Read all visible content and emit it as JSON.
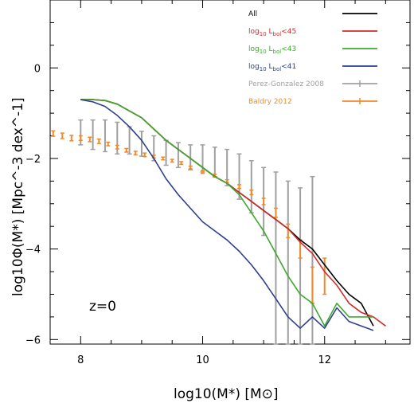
{
  "chart_data": {
    "type": "line",
    "title": "",
    "xlabel": "log10(M*)   [M⊙]",
    "ylabel": "log10Φ(M*)  [Mpc^-3 dex^-1]",
    "xlim": [
      7.5,
      13.4
    ],
    "ylim": [
      -6.1,
      1.5
    ],
    "x_ticks": [
      8,
      10,
      12
    ],
    "y_ticks": [
      0,
      -2,
      -4,
      -6
    ],
    "grid": false,
    "legend_position": "top-right",
    "annotation": "z=0",
    "series": [
      {
        "name": "All",
        "color": "#000000",
        "x": [
          8.0,
          8.2,
          8.4,
          8.6,
          8.8,
          9.0,
          9.2,
          9.4,
          9.6,
          9.8,
          10.0,
          10.2,
          10.4,
          10.6,
          10.8,
          11.0,
          11.2,
          11.4,
          11.6,
          11.8,
          12.0,
          12.2,
          12.4,
          12.6,
          12.8
        ],
        "y": [
          -0.7,
          -0.7,
          -0.72,
          -0.8,
          -0.95,
          -1.1,
          -1.35,
          -1.6,
          -1.8,
          -2.0,
          -2.2,
          -2.4,
          -2.55,
          -2.75,
          -2.95,
          -3.15,
          -3.35,
          -3.55,
          -3.8,
          -4.0,
          -4.35,
          -4.7,
          -5.0,
          -5.2,
          -5.7
        ]
      },
      {
        "name": "log10 Lbol<45",
        "color": "#d42a2a",
        "x": [
          8.0,
          8.2,
          8.4,
          8.6,
          8.8,
          9.0,
          9.2,
          9.4,
          9.6,
          9.8,
          10.0,
          10.2,
          10.4,
          10.6,
          10.8,
          11.0,
          11.2,
          11.4,
          11.6,
          11.8,
          12.0,
          12.2,
          12.4,
          12.6,
          12.8,
          13.0
        ],
        "y": [
          -0.7,
          -0.7,
          -0.72,
          -0.8,
          -0.95,
          -1.1,
          -1.35,
          -1.6,
          -1.8,
          -2.0,
          -2.2,
          -2.4,
          -2.55,
          -2.75,
          -2.95,
          -3.15,
          -3.35,
          -3.55,
          -3.85,
          -4.1,
          -4.5,
          -4.8,
          -5.2,
          -5.4,
          -5.5,
          -5.7
        ]
      },
      {
        "name": "log10 Lbol<43",
        "color": "#3daa2e",
        "x": [
          8.0,
          8.2,
          8.4,
          8.6,
          8.8,
          9.0,
          9.2,
          9.4,
          9.6,
          9.8,
          10.0,
          10.2,
          10.4,
          10.6,
          10.8,
          11.0,
          11.2,
          11.4,
          11.6,
          11.8,
          12.0,
          12.2,
          12.4,
          12.6,
          12.8
        ],
        "y": [
          -0.7,
          -0.7,
          -0.72,
          -0.8,
          -0.95,
          -1.1,
          -1.35,
          -1.6,
          -1.8,
          -2.0,
          -2.2,
          -2.4,
          -2.55,
          -2.8,
          -3.2,
          -3.6,
          -4.1,
          -4.6,
          -5.0,
          -5.2,
          -5.7,
          -5.2,
          -5.5,
          -5.5,
          -5.5
        ]
      },
      {
        "name": "log10 Lbol<41",
        "color": "#2e3f8f",
        "x": [
          8.0,
          8.2,
          8.4,
          8.6,
          8.8,
          9.0,
          9.2,
          9.4,
          9.6,
          9.8,
          10.0,
          10.2,
          10.4,
          10.6,
          10.8,
          11.0,
          11.2,
          11.4,
          11.6,
          11.8,
          12.0,
          12.2,
          12.4,
          12.6,
          12.8
        ],
        "y": [
          -0.7,
          -0.75,
          -0.85,
          -1.05,
          -1.3,
          -1.6,
          -2.0,
          -2.45,
          -2.8,
          -3.1,
          -3.4,
          -3.6,
          -3.8,
          -4.05,
          -4.35,
          -4.7,
          -5.1,
          -5.5,
          -5.75,
          -5.5,
          -5.75,
          -5.3,
          -5.6,
          -5.7,
          -5.8
        ]
      }
    ],
    "error_series": [
      {
        "name": "Perez-Gonzalez 2008",
        "color": "#a0a0a0",
        "x": [
          8.0,
          8.2,
          8.4,
          8.6,
          8.8,
          9.0,
          9.2,
          9.4,
          9.6,
          9.8,
          10.0,
          10.2,
          10.4,
          10.6,
          10.8,
          11.0,
          11.2,
          11.4,
          11.6,
          11.8
        ],
        "y_low": [
          -1.7,
          -1.8,
          -1.85,
          -1.9,
          -1.9,
          -1.95,
          -2.05,
          -2.15,
          -2.2,
          -2.25,
          -2.3,
          -2.4,
          -2.6,
          -2.9,
          -3.2,
          -3.7,
          -6.1,
          -6.1,
          -6.1,
          -6.1
        ],
        "y_high": [
          -1.15,
          -1.15,
          -1.15,
          -1.2,
          -1.3,
          -1.4,
          -1.5,
          -1.6,
          -1.65,
          -1.7,
          -1.7,
          -1.75,
          -1.8,
          -1.9,
          -2.05,
          -2.2,
          -2.3,
          -2.5,
          -2.65,
          -2.4
        ]
      },
      {
        "name": "Baldry 2012",
        "color": "#f08a2a",
        "x": [
          7.55,
          7.7,
          7.85,
          8.0,
          8.15,
          8.3,
          8.45,
          8.6,
          8.75,
          8.9,
          9.05,
          9.2,
          9.35,
          9.5,
          9.65,
          9.8,
          10.0,
          10.2,
          10.4,
          10.6,
          10.8,
          11.0,
          11.2,
          11.4,
          11.6,
          11.8,
          12.0
        ],
        "y": [
          -1.45,
          -1.5,
          -1.55,
          -1.55,
          -1.58,
          -1.62,
          -1.68,
          -1.75,
          -1.82,
          -1.88,
          -1.92,
          -1.96,
          -2.0,
          -2.05,
          -2.1,
          -2.2,
          -2.3,
          -2.38,
          -2.5,
          -2.62,
          -2.75,
          -2.95,
          -3.2,
          -3.6,
          -4.0,
          -4.8,
          -4.6
        ],
        "y_err": [
          0.06,
          0.06,
          0.06,
          0.05,
          0.05,
          0.05,
          0.04,
          0.04,
          0.04,
          0.04,
          0.04,
          0.03,
          0.03,
          0.03,
          0.03,
          0.03,
          0.03,
          0.03,
          0.03,
          0.04,
          0.05,
          0.07,
          0.1,
          0.15,
          0.2,
          0.4,
          0.4
        ]
      }
    ]
  }
}
